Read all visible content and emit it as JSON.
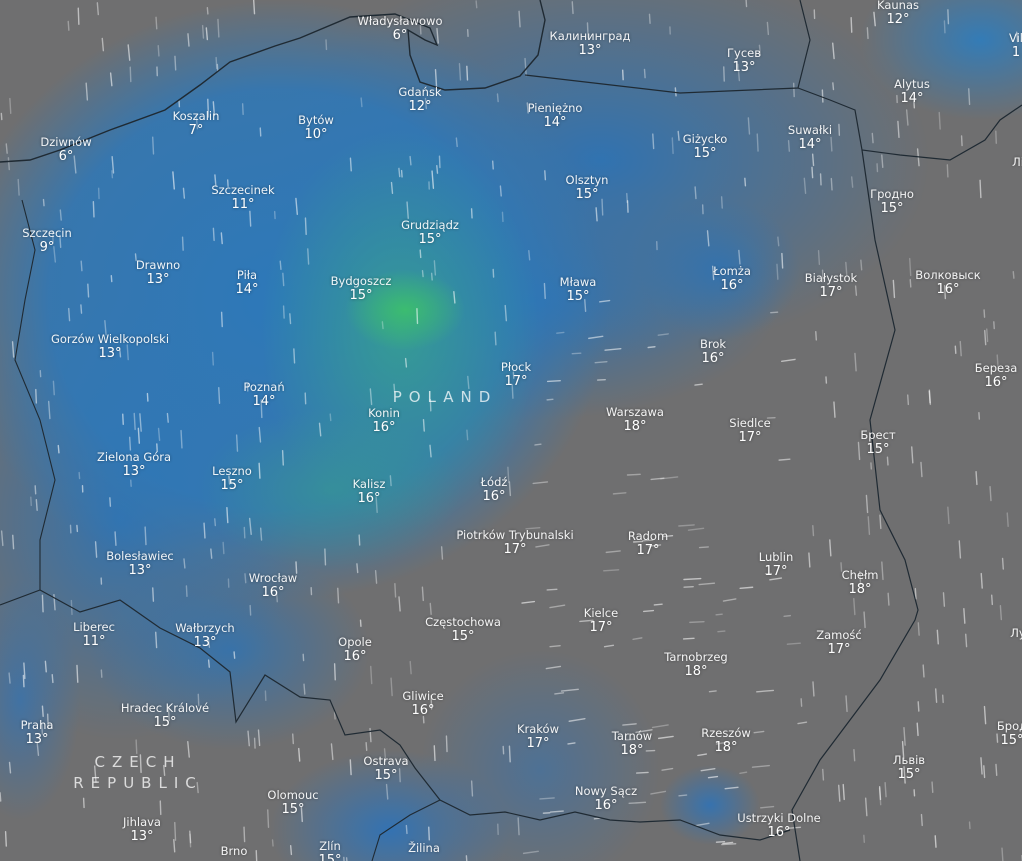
{
  "map": {
    "overlay_colors": {
      "land": "#6f6f70",
      "low": "#2d78b9",
      "high": "#3cbe6e"
    },
    "countries": [
      "POLAND",
      "CZECH REPUBLIC"
    ],
    "cities": [
      {
        "name": "Władysławowo",
        "temp": "6°"
      },
      {
        "name": "Калининград",
        "temp": "13°"
      },
      {
        "name": "Гусев",
        "temp": "13°"
      },
      {
        "name": "Kaunas",
        "temp": "12°"
      },
      {
        "name": "Vil",
        "temp": "1"
      },
      {
        "name": "Alytus",
        "temp": "14°"
      },
      {
        "name": "Gdańsk",
        "temp": "12°"
      },
      {
        "name": "Pieniężno",
        "temp": "14°"
      },
      {
        "name": "Koszalin",
        "temp": "7°"
      },
      {
        "name": "Bytów",
        "temp": "10°"
      },
      {
        "name": "Dziwnów",
        "temp": "6°"
      },
      {
        "name": "Giżycko",
        "temp": "15°"
      },
      {
        "name": "Suwałki",
        "temp": "14°"
      },
      {
        "name": "Лі",
        "temp": ""
      },
      {
        "name": "Olsztyn",
        "temp": "15°"
      },
      {
        "name": "Szczecinek",
        "temp": "11°"
      },
      {
        "name": "Гродно",
        "temp": "15°"
      },
      {
        "name": "Grudziądz",
        "temp": "15°"
      },
      {
        "name": "Szczecin",
        "temp": "9°"
      },
      {
        "name": "Drawno",
        "temp": "13°"
      },
      {
        "name": "Piła",
        "temp": "14°"
      },
      {
        "name": "Bydgoszcz",
        "temp": "15°"
      },
      {
        "name": "Mława",
        "temp": "15°"
      },
      {
        "name": "Łomża",
        "temp": "16°"
      },
      {
        "name": "Białystok",
        "temp": "17°"
      },
      {
        "name": "Волковыск",
        "temp": "16°"
      },
      {
        "name": "Gorzów Wielkopolski",
        "temp": "13°"
      },
      {
        "name": "Brok",
        "temp": "16°"
      },
      {
        "name": "Береза",
        "temp": "16°"
      },
      {
        "name": "Płock",
        "temp": "17°"
      },
      {
        "name": "Poznań",
        "temp": "14°"
      },
      {
        "name": "Warszawa",
        "temp": "18°"
      },
      {
        "name": "Konin",
        "temp": "16°"
      },
      {
        "name": "Siedlce",
        "temp": "17°"
      },
      {
        "name": "Брест",
        "temp": "15°"
      },
      {
        "name": "Zielona Góra",
        "temp": "13°"
      },
      {
        "name": "Leszno",
        "temp": "15°"
      },
      {
        "name": "Łódź",
        "temp": "16°"
      },
      {
        "name": "Kalisz",
        "temp": "16°"
      },
      {
        "name": "Piotrków Trybunalski",
        "temp": "17°"
      },
      {
        "name": "Radom",
        "temp": "17°"
      },
      {
        "name": "Bolesławiec",
        "temp": "13°"
      },
      {
        "name": "Lublin",
        "temp": "17°"
      },
      {
        "name": "Chełm",
        "temp": "18°"
      },
      {
        "name": "Wrocław",
        "temp": "16°"
      },
      {
        "name": "Kielce",
        "temp": "17°"
      },
      {
        "name": "Liberec",
        "temp": "11°"
      },
      {
        "name": "Wałbrzych",
        "temp": "13°"
      },
      {
        "name": "Częstochowa",
        "temp": "15°"
      },
      {
        "name": "Opole",
        "temp": "16°"
      },
      {
        "name": "Zamość",
        "temp": "17°"
      },
      {
        "name": "Лу",
        "temp": ""
      },
      {
        "name": "Tarnobrzeg",
        "temp": "18°"
      },
      {
        "name": "Gliwice",
        "temp": "16°"
      },
      {
        "name": "Hradec Králové",
        "temp": "15°"
      },
      {
        "name": "Praha",
        "temp": "13°"
      },
      {
        "name": "Kraków",
        "temp": "17°"
      },
      {
        "name": "Tarnów",
        "temp": "18°"
      },
      {
        "name": "Rzeszów",
        "temp": "18°"
      },
      {
        "name": "Брод",
        "temp": "15°"
      },
      {
        "name": "Ostrava",
        "temp": "15°"
      },
      {
        "name": "Львів",
        "temp": "15°"
      },
      {
        "name": "Nowy Sącz",
        "temp": "16°"
      },
      {
        "name": "Olomouc",
        "temp": "15°"
      },
      {
        "name": "Ustrzyki Dolne",
        "temp": "16°"
      },
      {
        "name": "Jihlava",
        "temp": "13°"
      },
      {
        "name": "Brno",
        "temp": ""
      },
      {
        "name": "Zlín",
        "temp": "15°"
      },
      {
        "name": "Žilina",
        "temp": ""
      }
    ]
  }
}
